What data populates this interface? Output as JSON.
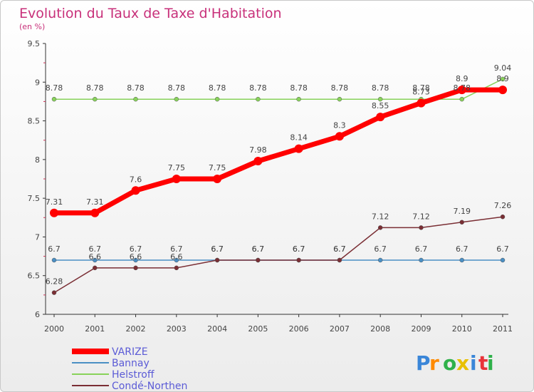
{
  "chart_data": {
    "type": "line",
    "title": "Evolution du Taux de Taxe d'Habitation",
    "subtitle": "(en %)",
    "x": [
      2000,
      2001,
      2002,
      2003,
      2004,
      2005,
      2006,
      2007,
      2008,
      2009,
      2010,
      2011
    ],
    "x_tick_labels": [
      "2000",
      "2001",
      "2002",
      "2003",
      "2004",
      "2005",
      "2006",
      "2007",
      "2008",
      "2009",
      "2010",
      "2011"
    ],
    "ylim": [
      6,
      9.5
    ],
    "y_ticks": [
      6,
      6.5,
      7,
      7.5,
      8,
      8.5,
      9,
      9.5
    ],
    "y_tick_labels": [
      "6",
      "6.5",
      "7",
      "7.5",
      "8",
      "8.5",
      "9",
      "9.5"
    ],
    "grid": false,
    "legend_position": "bottom-left",
    "series": [
      {
        "name": "VARIZE",
        "color": "#ff0000",
        "values": [
          7.31,
          7.31,
          7.6,
          7.75,
          7.75,
          7.98,
          8.14,
          8.3,
          8.55,
          8.73,
          8.9,
          8.9
        ],
        "labels": [
          "7.31",
          "7.31",
          "7.6",
          "7.75",
          "7.75",
          "7.98",
          "8.14",
          "8.3",
          "8.55",
          "8.73",
          "8.9",
          "8.9"
        ]
      },
      {
        "name": "Bannay",
        "color": "#4a8fc4",
        "values": [
          6.7,
          6.7,
          6.7,
          6.7,
          6.7,
          6.7,
          6.7,
          6.7,
          6.7,
          6.7,
          6.7,
          6.7
        ],
        "labels": [
          "6.7",
          "6.7",
          "6.7",
          "6.7",
          "6.7",
          "6.7",
          "6.7",
          "6.7",
          "6.7",
          "6.7",
          "6.7",
          "6.7"
        ]
      },
      {
        "name": "Helstroff",
        "color": "#88d25a",
        "values": [
          8.78,
          8.78,
          8.78,
          8.78,
          8.78,
          8.78,
          8.78,
          8.78,
          8.78,
          8.78,
          8.78,
          9.04
        ],
        "labels": [
          "8.78",
          "8.78",
          "8.78",
          "8.78",
          "8.78",
          "8.78",
          "8.78",
          "8.78",
          "8.78",
          "8.78",
          "8.78",
          "9.04"
        ]
      },
      {
        "name": "Condé-Northen",
        "color": "#7a2e34",
        "values": [
          6.28,
          6.6,
          6.6,
          6.6,
          6.7,
          6.7,
          6.7,
          6.7,
          7.12,
          7.12,
          7.19,
          7.26
        ],
        "labels": [
          "6.28",
          "6.6",
          "6.6",
          "6.6",
          "6.7",
          "6.7",
          "6.7",
          "6.7",
          "7.12",
          "7.12",
          "7.19",
          "7.26"
        ]
      }
    ]
  },
  "logo": {
    "letters": [
      "P",
      "r",
      "o",
      "x",
      "i",
      "t",
      "i"
    ],
    "colors": [
      "#3a86d8",
      "#ff8a00",
      "#2fb14a",
      "#e8c000",
      "#3a86d8",
      "#e8333a",
      "#2fb14a"
    ]
  }
}
